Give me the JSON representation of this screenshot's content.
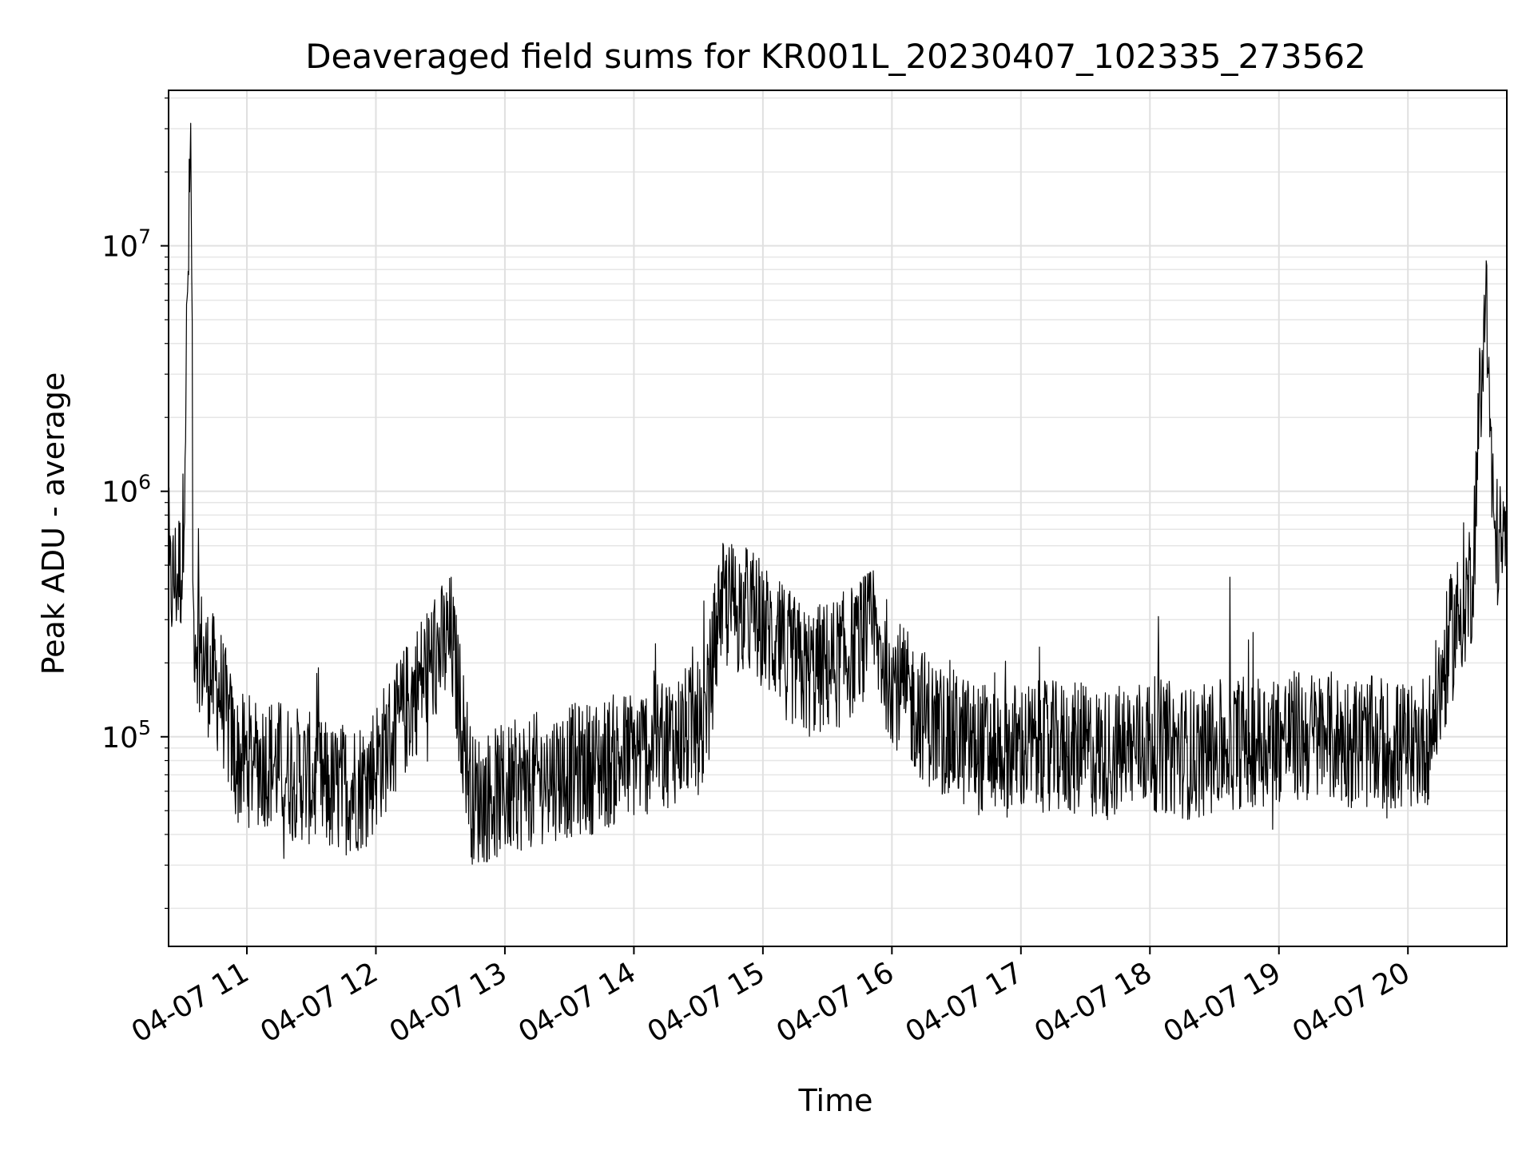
{
  "chart_data": {
    "type": "line",
    "title": "Deaveraged field sums for KR001L_20230407_102335_273562",
    "xlabel": "Time",
    "ylabel": "Peak ADU - average",
    "yscale": "log",
    "grid": true,
    "x_range": [
      "2023-04-07 10:23:35",
      "2023-04-07 20:46"
    ],
    "ylim": [
      14000,
      43000000
    ],
    "x_ticks": [
      "04-07 11",
      "04-07 12",
      "04-07 13",
      "04-07 14",
      "04-07 15",
      "04-07 16",
      "04-07 17",
      "04-07 18",
      "04-07 19",
      "04-07 20"
    ],
    "y_ticks": [
      {
        "value": 100000,
        "base": "10",
        "exp": "5"
      },
      {
        "value": 1000000,
        "base": "10",
        "exp": "6"
      },
      {
        "value": 10000000,
        "base": "10",
        "exp": "7"
      }
    ],
    "series": [
      {
        "color": "#000000",
        "x": [
          "2023-04-07 10:24",
          "2023-04-07 10:30",
          "2023-04-07 10:34",
          "2023-04-07 10:35",
          "2023-04-07 10:40",
          "2023-04-07 10:48",
          "2023-04-07 10:55",
          "2023-04-07 11:10",
          "2023-04-07 11:25",
          "2023-04-07 11:40",
          "2023-04-07 11:55",
          "2023-04-07 12:10",
          "2023-04-07 12:25",
          "2023-04-07 12:35",
          "2023-04-07 12:45",
          "2023-04-07 13:00",
          "2023-04-07 13:20",
          "2023-04-07 13:40",
          "2023-04-07 14:00",
          "2023-04-07 14:20",
          "2023-04-07 14:33",
          "2023-04-07 14:40",
          "2023-04-07 14:55",
          "2023-04-07 15:05",
          "2023-04-07 15:20",
          "2023-04-07 15:35",
          "2023-04-07 15:50",
          "2023-04-07 16:05",
          "2023-04-07 16:20",
          "2023-04-07 16:40",
          "2023-04-07 17:00",
          "2023-04-07 17:20",
          "2023-04-07 17:40",
          "2023-04-07 18:00",
          "2023-04-07 18:20",
          "2023-04-07 18:40",
          "2023-04-07 19:00",
          "2023-04-07 19:20",
          "2023-04-07 19:40",
          "2023-04-07 20:00",
          "2023-04-07 20:10",
          "2023-04-07 20:20",
          "2023-04-07 20:30",
          "2023-04-07 20:36",
          "2023-04-07 20:40",
          "2023-04-07 20:46"
        ],
        "y": [
          400000,
          500000,
          30000000,
          300000,
          200000,
          150000,
          80000,
          80000,
          70000,
          60000,
          65000,
          110000,
          200000,
          250000,
          55000,
          60000,
          70000,
          75000,
          85000,
          100000,
          110000,
          350000,
          320000,
          250000,
          180000,
          200000,
          260000,
          150000,
          110000,
          90000,
          90000,
          90000,
          85000,
          95000,
          85000,
          95000,
          100000,
          100000,
          95000,
          90000,
          100000,
          250000,
          450000,
          7500000,
          650000,
          550000
        ]
      }
    ],
    "annotations": []
  }
}
